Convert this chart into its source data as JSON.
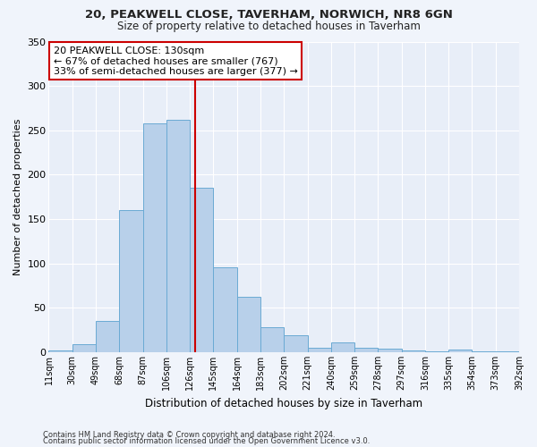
{
  "title1": "20, PEAKWELL CLOSE, TAVERHAM, NORWICH, NR8 6GN",
  "title2": "Size of property relative to detached houses in Taverham",
  "xlabel": "Distribution of detached houses by size in Taverham",
  "ylabel": "Number of detached properties",
  "bar_labels": [
    "11sqm",
    "30sqm",
    "49sqm",
    "68sqm",
    "87sqm",
    "106sqm",
    "126sqm",
    "145sqm",
    "164sqm",
    "183sqm",
    "202sqm",
    "221sqm",
    "240sqm",
    "259sqm",
    "278sqm",
    "297sqm",
    "316sqm",
    "335sqm",
    "354sqm",
    "373sqm",
    "392sqm"
  ],
  "bar_heights": [
    2,
    9,
    35,
    160,
    258,
    262,
    185,
    96,
    62,
    28,
    19,
    5,
    11,
    5,
    4,
    2,
    1,
    3,
    1,
    1
  ],
  "bar_color": "#b8d0ea",
  "bar_edgecolor": "#6aaad4",
  "annotation_line1": "20 PEAKWELL CLOSE: 130sqm",
  "annotation_line2": "← 67% of detached houses are smaller (767)",
  "annotation_line3": "33% of semi-detached houses are larger (377) →",
  "vline_color": "#cc0000",
  "annotation_box_edgecolor": "#cc0000",
  "background_color": "#f0f4fb",
  "plot_bg": "#e8eef8",
  "ylim": [
    0,
    350
  ],
  "yticks": [
    0,
    50,
    100,
    150,
    200,
    250,
    300,
    350
  ],
  "footnote1": "Contains HM Land Registry data © Crown copyright and database right 2024.",
  "footnote2": "Contains public sector information licensed under the Open Government Licence v3.0."
}
